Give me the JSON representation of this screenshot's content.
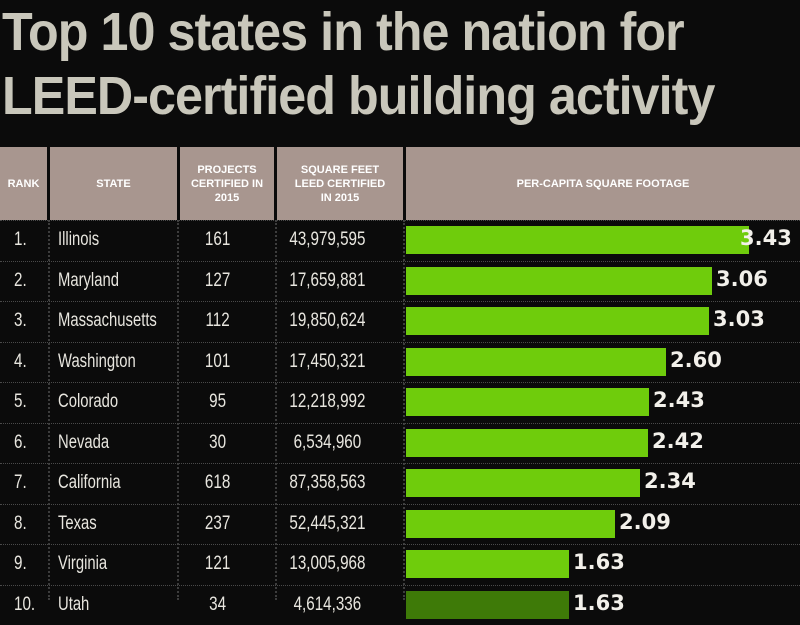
{
  "title_lines": [
    "Top 10 states in the nation for",
    "LEED-certified building activity"
  ],
  "headers": {
    "rank": "RANK",
    "state": "STATE",
    "projects": "PROJECTS\nCERTIFIED IN\n2015",
    "sqft": "SQUARE FEET\nLEED CERTIFIED\nIN 2015",
    "percap": "PER-CAPITA SQUARE FOOTAGE"
  },
  "chart_data": {
    "type": "bar",
    "orientation": "horizontal",
    "title": "Top 10 states in the nation for LEED-certified building activity",
    "value_label": "PER-CAPITA SQUARE FOOTAGE",
    "xlim": [
      0,
      3.6
    ],
    "bar_color": "#6fcc0c",
    "rows": [
      {
        "rank": "1.",
        "state": "Illinois",
        "projects": "161",
        "sqft": "43,979,595",
        "value": 3.43,
        "label": "3.43"
      },
      {
        "rank": "2.",
        "state": "Maryland",
        "projects": "127",
        "sqft": "17,659,881",
        "value": 3.06,
        "label": "3.06"
      },
      {
        "rank": "3.",
        "state": "Massachusetts",
        "projects": "112",
        "sqft": "19,850,624",
        "value": 3.03,
        "label": "3.03"
      },
      {
        "rank": "4.",
        "state": "Washington",
        "projects": "101",
        "sqft": "17,450,321",
        "value": 2.6,
        "label": "2.60"
      },
      {
        "rank": "5.",
        "state": "Colorado",
        "projects": "95",
        "sqft": "12,218,992",
        "value": 2.43,
        "label": "2.43"
      },
      {
        "rank": "6.",
        "state": "Nevada",
        "projects": "30",
        "sqft": "6,534,960",
        "value": 2.42,
        "label": "2.42"
      },
      {
        "rank": "7.",
        "state": "California",
        "projects": "618",
        "sqft": "87,358,563",
        "value": 2.34,
        "label": "2.34"
      },
      {
        "rank": "8.",
        "state": "Texas",
        "projects": "237",
        "sqft": "52,445,321",
        "value": 2.09,
        "label": "2.09"
      },
      {
        "rank": "9.",
        "state": "Virginia",
        "projects": "121",
        "sqft": "13,005,968",
        "value": 1.63,
        "label": "1.63"
      },
      {
        "rank": "10.",
        "state": "Utah",
        "projects": "34",
        "sqft": "4,614,336",
        "value": 1.63,
        "label": "1.63"
      }
    ]
  }
}
